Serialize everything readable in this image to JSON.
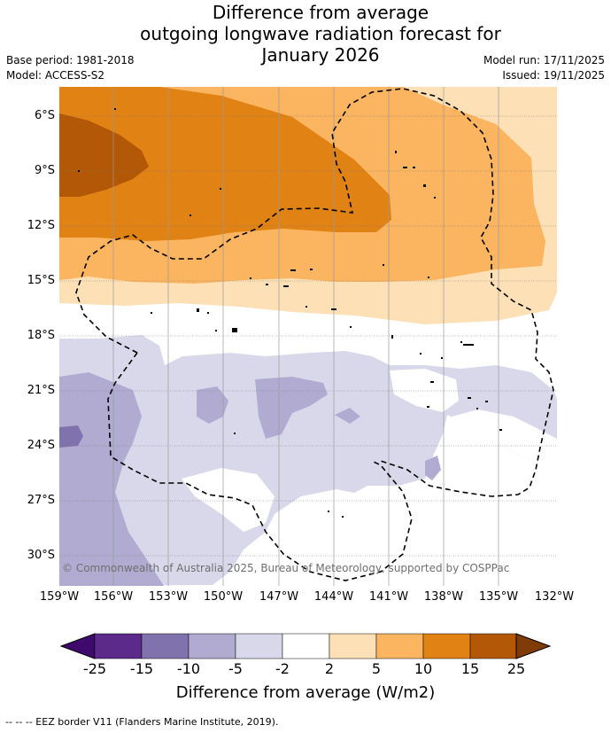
{
  "title_lines": [
    "Difference from average",
    "outgoing longwave radiation forecast for",
    "January 2026"
  ],
  "meta": {
    "base_period": "Base period: 1981-2018",
    "model": "Model: ACCESS-S2",
    "model_run": "Model run: 17/11/2025",
    "issued": "Issued: 19/11/2025"
  },
  "lat_labels": [
    "6°S",
    "9°S",
    "12°S",
    "15°S",
    "18°S",
    "21°S",
    "24°S",
    "27°S",
    "30°S"
  ],
  "lon_labels": [
    "159°W",
    "156°W",
    "153°W",
    "150°W",
    "147°W",
    "144°W",
    "141°W",
    "138°W",
    "135°W",
    "132°W"
  ],
  "credit": "© Commonwealth of Australia 2025, Bureau of Meteorology, supported by COSPPac",
  "colorbar": {
    "ticks": [
      "-25",
      "-15",
      "-10",
      "-5",
      "-2",
      "2",
      "5",
      "10",
      "15",
      "25"
    ],
    "colors": [
      "#3f0a6e",
      "#5c2a8a",
      "#8073ad",
      "#b1abd2",
      "#d8d8ea",
      "#ffffff",
      "#fde0b5",
      "#fbb45f",
      "#e08214",
      "#b35806",
      "#7f3b08"
    ],
    "label": "Difference from average (W/m2)"
  },
  "footer": "--  --  -- EEZ border V11 (Flanders Marine Institute, 2019)."
}
